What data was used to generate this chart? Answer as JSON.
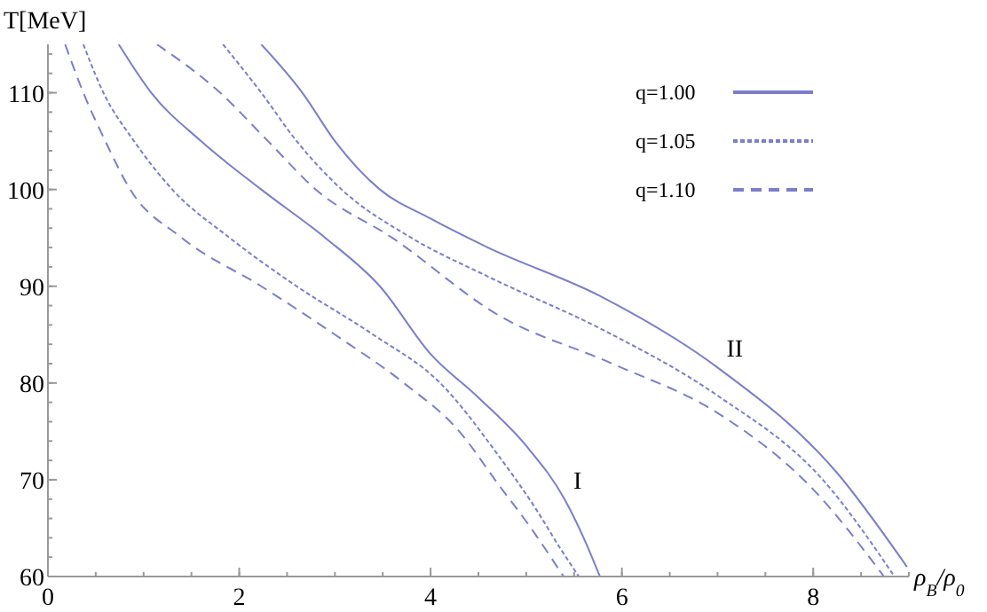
{
  "chart_data": {
    "type": "line",
    "xlabel": "ρ$_{B}$/ρ$_{0}$",
    "ylabel": "T[MeV]",
    "xlim": [
      0,
      9
    ],
    "ylim": [
      60,
      115
    ],
    "xticks": [
      0,
      2,
      4,
      6,
      8
    ],
    "yticks": [
      60,
      70,
      80,
      90,
      100,
      110
    ],
    "grid": false,
    "legend": "top right",
    "series": [
      {
        "name": "q=1.00",
        "color": "#7b7ecb",
        "line_style": "solid",
        "x": [
          0.74,
          1.08,
          1.6,
          2.23,
          2.9,
          3.47,
          4.0,
          4.5,
          5.0,
          5.4,
          5.6,
          5.77
        ],
        "values": [
          115,
          110,
          105,
          100,
          95,
          90,
          83,
          78.5,
          73.5,
          68,
          64,
          60
        ]
      },
      {
        "name": "q=1.05",
        "color": "#7b7ecb",
        "line_style": "dotted",
        "x": [
          0.37,
          0.58,
          0.9,
          1.3,
          1.9,
          2.6,
          3.4,
          4.1,
          4.71,
          5.1,
          5.35,
          5.55
        ],
        "values": [
          115,
          110,
          105,
          100,
          95,
          90,
          85,
          80,
          72.5,
          67,
          63,
          60
        ]
      },
      {
        "name": "q=1.10",
        "color": "#7b7ecb",
        "line_style": "dashed",
        "x": [
          0.18,
          0.37,
          0.6,
          0.86,
          1.4,
          2.23,
          3.0,
          3.72,
          4.3,
          4.71,
          5.05,
          5.39
        ],
        "values": [
          115,
          110,
          105,
          100,
          95,
          90,
          85,
          80,
          75,
          69.5,
          65,
          60
        ]
      },
      {
        "color": "#7b7ecb",
        "line_style": "solid",
        "x": [
          2.23,
          2.66,
          3.0,
          3.47,
          4.0,
          4.6,
          5.77,
          7.0,
          8.25,
          8.98
        ],
        "values": [
          115,
          110,
          105,
          100,
          97,
          94,
          89,
          81.6,
          70.7,
          61
        ]
      },
      {
        "color": "#7b7ecb",
        "line_style": "dotted",
        "x": [
          1.83,
          2.23,
          2.6,
          3.07,
          3.8,
          4.6,
          5.8,
          7.0,
          8.1,
          8.85
        ],
        "values": [
          115,
          110,
          105,
          100,
          95,
          91,
          85.5,
          78.7,
          70,
          60
        ]
      },
      {
        "color": "#7b7ecb",
        "line_style": "dashed",
        "x": [
          1.14,
          1.8,
          2.3,
          2.8,
          3.6,
          4.71,
          5.9,
          7.0,
          8.0,
          8.74
        ],
        "values": [
          115,
          110,
          105,
          100,
          95,
          87,
          82,
          76.9,
          69,
          60
        ]
      }
    ],
    "annotations": [
      {
        "text": "I",
        "x": 5.4,
        "y": 68
      },
      {
        "text": "II",
        "x": 7.0,
        "y": 81.6
      }
    ]
  }
}
